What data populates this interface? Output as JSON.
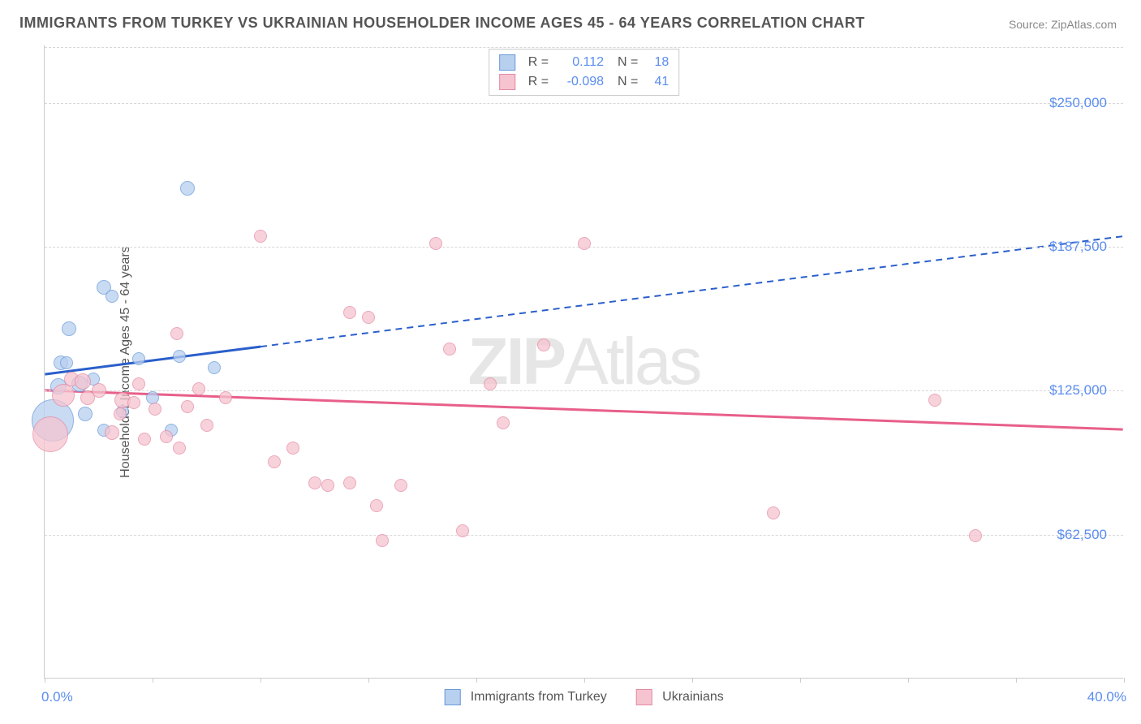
{
  "title": "IMMIGRANTS FROM TURKEY VS UKRAINIAN HOUSEHOLDER INCOME AGES 45 - 64 YEARS CORRELATION CHART",
  "source": "Source: ZipAtlas.com",
  "watermark_a": "ZIP",
  "watermark_b": "Atlas",
  "ylabel": "Householder Income Ages 45 - 64 years",
  "chart": {
    "type": "scatter",
    "xlim": [
      0,
      40
    ],
    "ylim": [
      0,
      275000
    ],
    "x_min_label": "0.0%",
    "x_max_label": "40.0%",
    "y_ticks": [
      62500,
      125000,
      187500,
      250000
    ],
    "y_tick_labels": [
      "$62,500",
      "$125,000",
      "$187,500",
      "$250,000"
    ],
    "x_tick_positions": [
      0,
      4,
      8,
      12,
      16,
      20,
      24,
      28,
      32,
      36,
      40
    ],
    "grid_color": "#d8d8d8",
    "background_color": "#ffffff",
    "axis_label_color": "#5b8def",
    "series": [
      {
        "key": "turkey",
        "label": "Immigrants from Turkey",
        "fill": "#b8d0ef",
        "stroke": "#6a9ad8",
        "line_color": "#2a5fcb",
        "R": "0.112",
        "N": "18",
        "points": [
          {
            "x": 0.3,
            "y": 112000,
            "r": 26
          },
          {
            "x": 0.5,
            "y": 127000,
            "r": 10
          },
          {
            "x": 0.6,
            "y": 137000,
            "r": 9
          },
          {
            "x": 0.8,
            "y": 137000,
            "r": 8
          },
          {
            "x": 0.9,
            "y": 152000,
            "r": 9
          },
          {
            "x": 1.5,
            "y": 115000,
            "r": 9
          },
          {
            "x": 1.8,
            "y": 130000,
            "r": 8
          },
          {
            "x": 2.2,
            "y": 108000,
            "r": 8
          },
          {
            "x": 1.3,
            "y": 128000,
            "r": 10
          },
          {
            "x": 2.2,
            "y": 170000,
            "r": 9
          },
          {
            "x": 2.5,
            "y": 166000,
            "r": 8
          },
          {
            "x": 2.9,
            "y": 116000,
            "r": 8
          },
          {
            "x": 3.5,
            "y": 139000,
            "r": 8
          },
          {
            "x": 4.0,
            "y": 122000,
            "r": 8
          },
          {
            "x": 4.7,
            "y": 108000,
            "r": 8
          },
          {
            "x": 5.0,
            "y": 140000,
            "r": 8
          },
          {
            "x": 5.3,
            "y": 213000,
            "r": 9
          },
          {
            "x": 6.3,
            "y": 135000,
            "r": 8
          }
        ],
        "trend": {
          "x1": 0,
          "y1": 132000,
          "x2": 40,
          "y2": 192000,
          "solid_until_x": 8
        }
      },
      {
        "key": "ukraine",
        "label": "Ukrainians",
        "fill": "#f6c4d0",
        "stroke": "#e38aa3",
        "line_color": "#e85f8a",
        "R": "-0.098",
        "N": "41",
        "points": [
          {
            "x": 0.2,
            "y": 106000,
            "r": 22
          },
          {
            "x": 0.7,
            "y": 123000,
            "r": 14
          },
          {
            "x": 1.0,
            "y": 130000,
            "r": 9
          },
          {
            "x": 1.4,
            "y": 129000,
            "r": 10
          },
          {
            "x": 1.6,
            "y": 122000,
            "r": 9
          },
          {
            "x": 2.0,
            "y": 125000,
            "r": 9
          },
          {
            "x": 2.5,
            "y": 107000,
            "r": 9
          },
          {
            "x": 2.8,
            "y": 115000,
            "r": 8
          },
          {
            "x": 2.9,
            "y": 121000,
            "r": 10
          },
          {
            "x": 3.7,
            "y": 104000,
            "r": 8
          },
          {
            "x": 3.3,
            "y": 120000,
            "r": 8
          },
          {
            "x": 3.5,
            "y": 128000,
            "r": 8
          },
          {
            "x": 4.1,
            "y": 117000,
            "r": 8
          },
          {
            "x": 4.5,
            "y": 105000,
            "r": 8
          },
          {
            "x": 4.9,
            "y": 150000,
            "r": 8
          },
          {
            "x": 5.3,
            "y": 118000,
            "r": 8
          },
          {
            "x": 5.7,
            "y": 126000,
            "r": 8
          },
          {
            "x": 6.0,
            "y": 110000,
            "r": 8
          },
          {
            "x": 6.7,
            "y": 122000,
            "r": 8
          },
          {
            "x": 8.0,
            "y": 192000,
            "r": 8
          },
          {
            "x": 8.5,
            "y": 94000,
            "r": 8
          },
          {
            "x": 9.2,
            "y": 100000,
            "r": 8
          },
          {
            "x": 10.0,
            "y": 85000,
            "r": 8
          },
          {
            "x": 10.5,
            "y": 84000,
            "r": 8
          },
          {
            "x": 11.3,
            "y": 159000,
            "r": 8
          },
          {
            "x": 11.3,
            "y": 85000,
            "r": 8
          },
          {
            "x": 12.0,
            "y": 157000,
            "r": 8
          },
          {
            "x": 12.3,
            "y": 75000,
            "r": 8
          },
          {
            "x": 12.5,
            "y": 60000,
            "r": 8
          },
          {
            "x": 13.2,
            "y": 84000,
            "r": 8
          },
          {
            "x": 14.5,
            "y": 189000,
            "r": 8
          },
          {
            "x": 15.0,
            "y": 143000,
            "r": 8
          },
          {
            "x": 15.5,
            "y": 64000,
            "r": 8
          },
          {
            "x": 16.5,
            "y": 128000,
            "r": 8
          },
          {
            "x": 17.0,
            "y": 111000,
            "r": 8
          },
          {
            "x": 18.5,
            "y": 145000,
            "r": 8
          },
          {
            "x": 20.0,
            "y": 189000,
            "r": 8
          },
          {
            "x": 27.0,
            "y": 72000,
            "r": 8
          },
          {
            "x": 33.0,
            "y": 121000,
            "r": 8
          },
          {
            "x": 34.5,
            "y": 62000,
            "r": 8
          },
          {
            "x": 5.0,
            "y": 100000,
            "r": 8
          }
        ],
        "trend": {
          "x1": 0,
          "y1": 125000,
          "x2": 40,
          "y2": 108000,
          "solid_until_x": 40
        }
      }
    ]
  }
}
